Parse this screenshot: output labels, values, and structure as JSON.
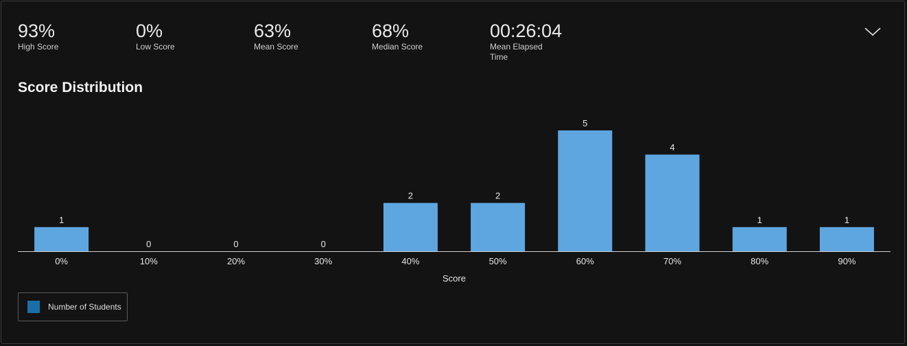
{
  "stats": {
    "high": {
      "value": "93%",
      "label": "High Score"
    },
    "low": {
      "value": "0%",
      "label": "Low Score"
    },
    "mean": {
      "value": "63%",
      "label": "Mean Score"
    },
    "median": {
      "value": "68%",
      "label": "Median Score"
    },
    "elapsed": {
      "value": "00:26:04",
      "label_line1": "Mean Elapsed",
      "label_line2": "Time"
    }
  },
  "toggle_icon": "chevron-down-icon",
  "colors": {
    "bar": "#5ea6e0",
    "legend_swatch": "#1a6fa8",
    "axis": "#d0d0d0",
    "text": "#e6e6e6"
  },
  "chart_data": {
    "type": "bar",
    "title": "Score Distribution",
    "categories": [
      "0%",
      "10%",
      "20%",
      "30%",
      "40%",
      "50%",
      "60%",
      "70%",
      "80%",
      "90%"
    ],
    "series": [
      {
        "name": "Number of Students",
        "values": [
          1,
          0,
          0,
          0,
          2,
          2,
          5,
          4,
          1,
          1
        ]
      }
    ],
    "xlabel": "Score",
    "ylabel": "",
    "ylim": [
      0,
      5
    ],
    "grid": false,
    "legend_position": "bottom-left",
    "data_labels": true
  }
}
